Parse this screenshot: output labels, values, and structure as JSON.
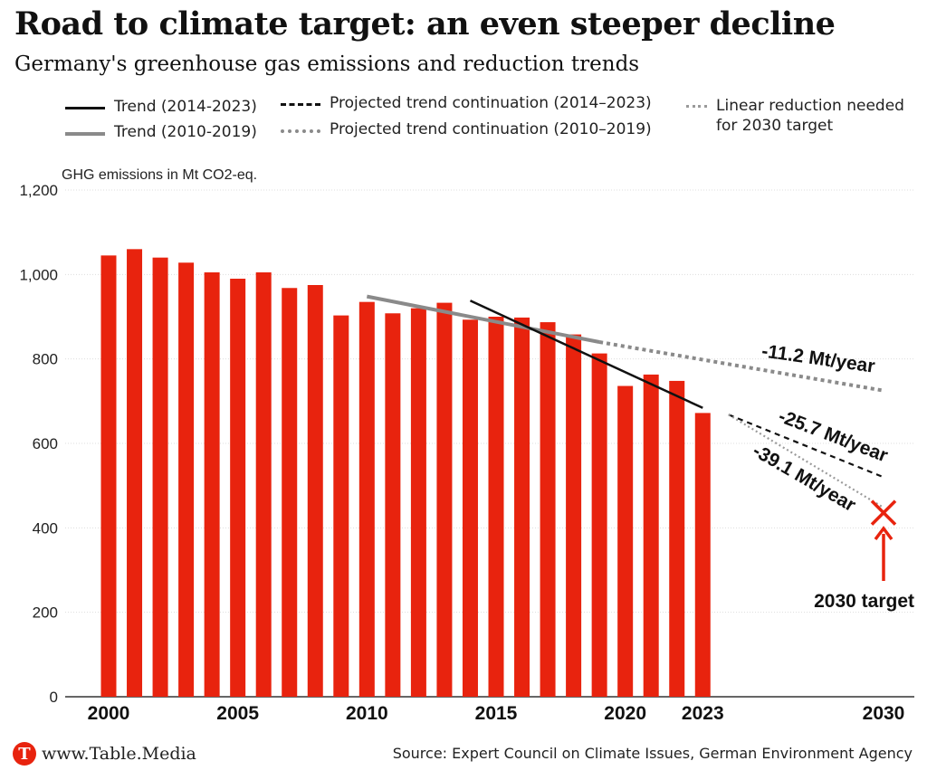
{
  "header": {
    "title": "Road to climate target: an even steeper decline",
    "subtitle": "Germany's greenhouse gas emissions and reduction trends"
  },
  "legend": {
    "trend_2014_2023": "Trend (2014-2023)",
    "trend_2010_2019": "Trend (2010-2019)",
    "proj_2014_2023": "Projected trend continuation (2014–2023)",
    "proj_2010_2019": "Projected trend continuation (2010–2019)",
    "linear_needed": "Linear reduction needed for 2030 target"
  },
  "footer": {
    "brand": "www.Table.Media",
    "logo_letter": "T",
    "source": "Source: Expert Council on Climate Issues, German Environment Agency"
  },
  "colors": {
    "bar": "#e8230e",
    "trend_2014": "#111111",
    "trend_2010": "#8a8a8a",
    "linear": "#9a9a9a",
    "target": "#e8230e",
    "grid": "#dddddd"
  },
  "chart_data": {
    "type": "bar",
    "ylabel": "GHG emissions in Mt CO2-eq.",
    "ylim": [
      0,
      1200
    ],
    "yticks": [
      0,
      200,
      400,
      600,
      800,
      1000,
      1200
    ],
    "ytick_labels": [
      "0",
      "200",
      "400",
      "600",
      "800",
      "1,000",
      "1,200"
    ],
    "xlim": [
      2000,
      2030
    ],
    "xtick_labels": [
      {
        "year": 2000,
        "label": "2000"
      },
      {
        "year": 2005,
        "label": "2005"
      },
      {
        "year": 2010,
        "label": "2010"
      },
      {
        "year": 2015,
        "label": "2015"
      },
      {
        "year": 2020,
        "label": "2020"
      },
      {
        "year": 2023,
        "label": "2023"
      },
      {
        "year": 2030,
        "label": "2030"
      }
    ],
    "years": [
      2000,
      2001,
      2002,
      2003,
      2004,
      2005,
      2006,
      2007,
      2008,
      2009,
      2010,
      2011,
      2012,
      2013,
      2014,
      2015,
      2016,
      2017,
      2018,
      2019,
      2020,
      2021,
      2022,
      2023
    ],
    "values": [
      1045,
      1060,
      1040,
      1028,
      1005,
      990,
      1005,
      968,
      975,
      903,
      935,
      908,
      920,
      933,
      893,
      900,
      898,
      887,
      858,
      813,
      736,
      763,
      748,
      672
    ],
    "trends": [
      {
        "name": "Trend (2010-2019)",
        "x": [
          2010,
          2019
        ],
        "y": [
          948,
          840
        ]
      },
      {
        "name": "Trend (2014-2023)",
        "x": [
          2014,
          2023
        ],
        "y": [
          938,
          684
        ]
      }
    ],
    "projections": [
      {
        "name": "Projected trend continuation (2010–2019)",
        "x": [
          2019,
          2030
        ],
        "y": [
          840,
          725
        ],
        "rate_label": "-11.2 Mt/year"
      },
      {
        "name": "Projected trend continuation (2014–2023)",
        "x": [
          2024,
          2030
        ],
        "y": [
          668,
          520
        ],
        "rate_label": "-25.7 Mt/year"
      },
      {
        "name": "Linear reduction needed for 2030 target",
        "x": [
          2024,
          2030
        ],
        "y": [
          668,
          448
        ],
        "rate_label": "-39.1 Mt/year"
      }
    ],
    "target": {
      "year": 2030,
      "value": 440,
      "label": "2030 target"
    }
  }
}
